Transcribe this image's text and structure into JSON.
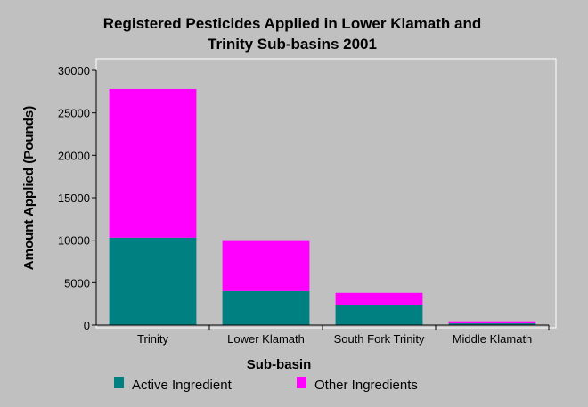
{
  "chart_data": {
    "type": "bar",
    "stacked": true,
    "title": [
      "Registered Pesticides Applied in Lower Klamath and",
      "Trinity Sub-basins 2001"
    ],
    "xlabel": "Sub-basin",
    "ylabel": "Amount Applied (Pounds)",
    "ylim": [
      0,
      30000
    ],
    "yticks": [
      "0",
      "5000",
      "10000",
      "15000",
      "20000",
      "25000",
      "30000"
    ],
    "categories": [
      "Trinity",
      "Lower Klamath",
      "South Fork Trinity",
      "Middle Klamath"
    ],
    "series": [
      {
        "name": "Active Ingredient",
        "color": "#008080",
        "values": [
          10300,
          4000,
          2400,
          200
        ]
      },
      {
        "name": "Other Ingredients",
        "color": "#ff00ff",
        "values": [
          17500,
          5900,
          1400,
          250
        ]
      }
    ],
    "grid": false,
    "legend_position": "bottom"
  }
}
